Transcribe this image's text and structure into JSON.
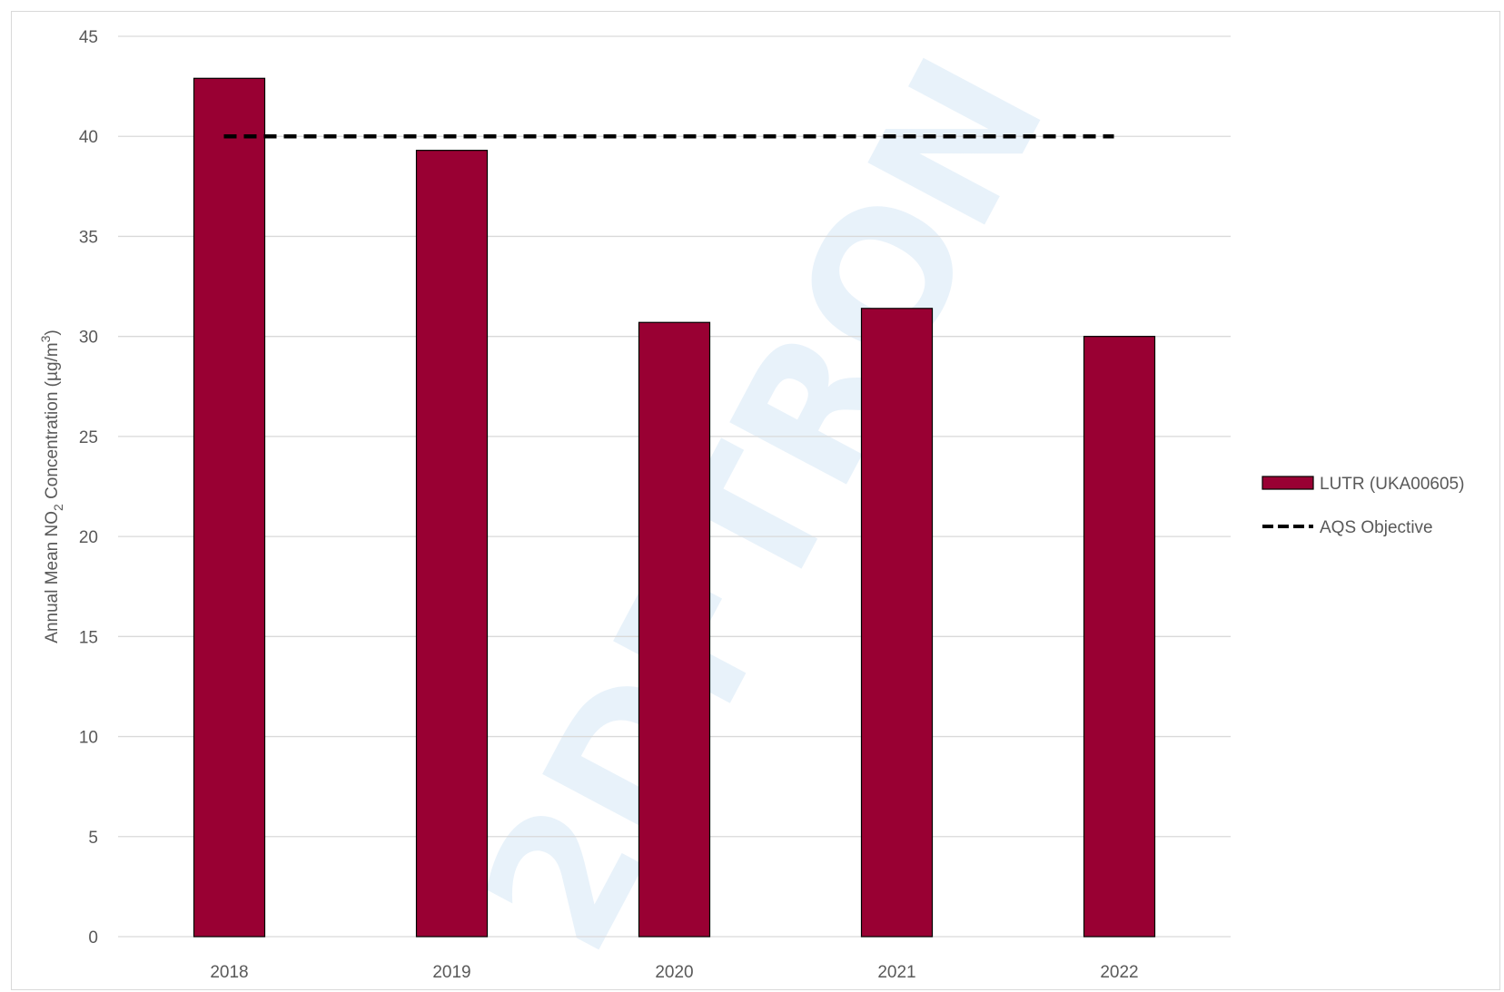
{
  "chart_data": {
    "type": "bar",
    "categories": [
      "2018",
      "2019",
      "2020",
      "2021",
      "2022"
    ],
    "series": [
      {
        "name": "LUTR (UKA00605)",
        "values": [
          42.9,
          39.3,
          30.7,
          31.4,
          30.0
        ],
        "color": "#990033"
      }
    ],
    "reference_line": {
      "name": "AQS Objective",
      "value": 40,
      "style": "dashed",
      "color": "#000000"
    },
    "ylabel_parts": {
      "pre": "Annual Mean NO",
      "sub": "2",
      "mid": " Concentration (µg/m",
      "sup": "3",
      "post": ")"
    },
    "xlabel": "",
    "title": "",
    "ylim": [
      0,
      45
    ],
    "yticks": [
      "0",
      "5",
      "10",
      "15",
      "20",
      "25",
      "30",
      "35",
      "40",
      "45"
    ],
    "grid": true,
    "legend_position": "right",
    "watermark": "2DFTRON"
  }
}
